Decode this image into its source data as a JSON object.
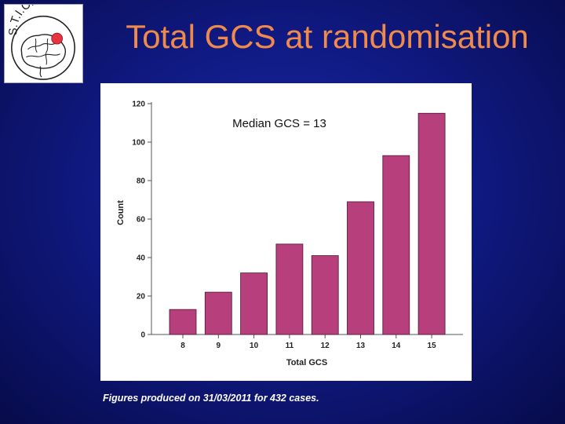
{
  "slide": {
    "title": "Total GCS at randomisation",
    "footnote": "Figures produced on 31/03/2011 for 432 cases.",
    "logo_text": "S.T.I.C.H. II"
  },
  "chart_data": {
    "type": "bar",
    "title": "",
    "annotation": "Median GCS = 13",
    "xlabel": "Total GCS",
    "ylabel": "Count",
    "categories": [
      "8",
      "9",
      "10",
      "11",
      "12",
      "13",
      "14",
      "15"
    ],
    "values": [
      13,
      22,
      32,
      47,
      41,
      69,
      93,
      115
    ],
    "ylim": [
      0,
      120
    ],
    "yticks": [
      0,
      20,
      40,
      60,
      80,
      100,
      120
    ],
    "grid": false,
    "legend": "none",
    "colors": {
      "bar": "#b73f7c",
      "bar_edge": "#4a1633",
      "axis": "#555555"
    }
  }
}
